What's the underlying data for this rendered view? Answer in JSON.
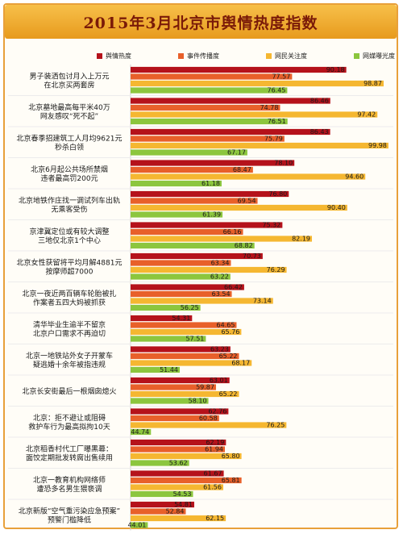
{
  "chart_data": {
    "type": "bar",
    "title": "2015年3月北京市舆情热度指数",
    "series": [
      {
        "name": "舆情热度",
        "color": "#b5121b",
        "values": [
          90.18,
          86.46,
          86.43,
          78.1,
          76.8,
          75.32,
          70.73,
          66.42,
          54.31,
          63.23,
          63.01,
          62.76,
          62.19,
          61.67,
          54.81
        ]
      },
      {
        "name": "事件传播度",
        "color": "#e8602a",
        "values": [
          77.57,
          74.78,
          75.79,
          68.47,
          69.54,
          66.16,
          63.34,
          63.54,
          64.65,
          65.22,
          59.87,
          60.58,
          61.94,
          65.81,
          52.84
        ]
      },
      {
        "name": "网民关注度",
        "color": "#f5b731",
        "values": [
          98.87,
          97.42,
          99.98,
          94.6,
          90.4,
          82.19,
          76.29,
          73.14,
          65.76,
          68.17,
          65.22,
          76.25,
          65.8,
          61.56,
          62.15
        ]
      },
      {
        "name": "网媒曝光度",
        "color": "#8cc63e",
        "values": [
          76.45,
          76.51,
          67.17,
          61.18,
          61.39,
          68.82,
          63.22,
          56.25,
          57.51,
          51.44,
          58.1,
          44.74,
          53.62,
          54.53,
          44.01
        ]
      }
    ],
    "categories": [
      [
        "男子装洒包讨月入上万元",
        "在北京买两套房"
      ],
      [
        "北京墓地最高每平米40万",
        "网友感叹“死不起”"
      ],
      [
        "北京春季招建筑工人月均9621元",
        "秒杀白领"
      ],
      [
        "北京6月起公共场所禁烟",
        "违者最高罚200元"
      ],
      [
        "北京地铁作庄找一调试列车出轨",
        "无乘客受伤"
      ],
      [
        "京津冀定位或有较大调整",
        "三地仅北京1个中心"
      ],
      [
        "北京女性获留将平均月解4881元",
        "按摩师超7000"
      ],
      [
        "北京一夜近两百辆车轮胎被扎",
        "作案者五四大妈被抓获"
      ],
      [
        "清华毕业生逾半不留京",
        "北京户口需求不再迫切"
      ],
      [
        "北京一地铁站外女子开蒙车",
        "疑逃婚十余年被指违规"
      ],
      [
        "北京长安街最后一根烟囱熄火"
      ],
      [
        "北京：拒不避让或阻碍",
        "救护车行为最高拟拘10天"
      ],
      [
        "北京稻香村代工厂曝黑幕：",
        "面饺定期批发转腐出售续用"
      ],
      [
        "北京一教育机构网络师",
        "遭恐多名男生猥亵调"
      ],
      [
        "北京新版“空气重污染应急预案”",
        "预警门槛降低"
      ]
    ],
    "xlim": [
      40,
      100
    ],
    "legend_position": "top"
  }
}
